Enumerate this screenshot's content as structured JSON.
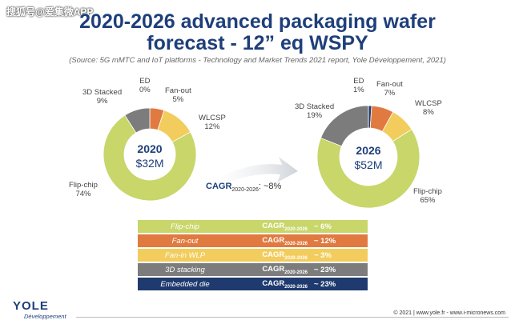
{
  "watermark": "搜狐号@爱集微APP",
  "title_line1": "2020-2026 advanced packaging wafer",
  "title_line2": "forecast - 12” eq WSPY",
  "source": "(Source: 5G mMTC and IoT platforms - Technology and Market Trends 2021 report, Yole Développement, 2021)",
  "colors": {
    "ed": "#1f3a6e",
    "fanout": "#e07a40",
    "wlcsp": "#f2cc5c",
    "stacked": "#7c7c7c",
    "flipchip": "#c8d66a"
  },
  "chart_data": [
    {
      "type": "pie",
      "year": "2020",
      "total": "$32M",
      "slices": [
        {
          "name": "ED",
          "pct": 0,
          "label": "0%"
        },
        {
          "name": "Fan-out",
          "pct": 5,
          "label": "5%"
        },
        {
          "name": "WLCSP",
          "pct": 12,
          "label": "12%"
        },
        {
          "name": "Flip-chip",
          "pct": 74,
          "label": "74%"
        },
        {
          "name": "3D Stacked",
          "pct": 9,
          "label": "9%"
        }
      ]
    },
    {
      "type": "pie",
      "year": "2026",
      "total": "$52M",
      "slices": [
        {
          "name": "ED",
          "pct": 1,
          "label": "1%"
        },
        {
          "name": "Fan-out",
          "pct": 7,
          "label": "7%"
        },
        {
          "name": "WLCSP",
          "pct": 8,
          "label": "8%"
        },
        {
          "name": "Flip-chip",
          "pct": 65,
          "label": "65%"
        },
        {
          "name": "3D Stacked",
          "pct": 19,
          "label": "19%"
        }
      ]
    }
  ],
  "overall_cagr": {
    "label": "CAGR",
    "sub": "2020-2026",
    "value": ": ~8%"
  },
  "cagr_table": [
    {
      "segment": "Flip-chip",
      "cagr": "CAGR",
      "sub": "2020-2026",
      "value": "~ 6%",
      "color": "#c8d66a"
    },
    {
      "segment": "Fan-out",
      "cagr": "CAGR",
      "sub": "2020-2026",
      "value": "~ 12%",
      "color": "#e07a40"
    },
    {
      "segment": "Fan-in WLP",
      "cagr": "CAGR",
      "sub": "2020-2026",
      "value": "~ 3%",
      "color": "#f2cc5c"
    },
    {
      "segment": "3D stacking",
      "cagr": "CAGR",
      "sub": "2020-2026",
      "value": "~ 23%",
      "color": "#7c7c7c"
    },
    {
      "segment": "Embedded die",
      "cagr": "CAGR",
      "sub": "2020-2026",
      "value": "~ 23%",
      "color": "#1f3a6e"
    }
  ],
  "logo_name": "YOLE",
  "logo_sub": "Développement",
  "footer": "© 2021 | www.yole.fr - www.i-micronews.com"
}
